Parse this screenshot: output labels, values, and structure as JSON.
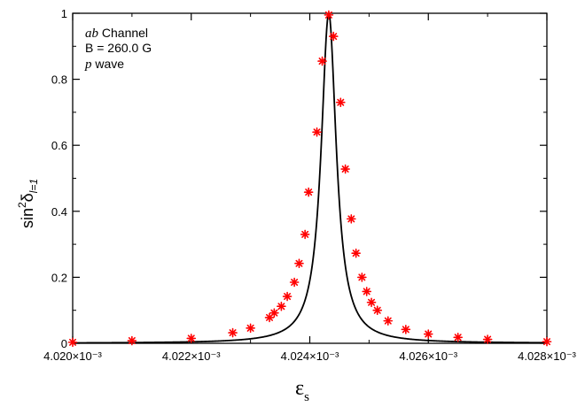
{
  "chart_data": {
    "type": "line",
    "title": "",
    "xlabel": {
      "main": "ε",
      "sub": "s"
    },
    "ylabel": {
      "prefix": "sin",
      "sup": "2",
      "delta": "δ",
      "sub": "l=1"
    },
    "xlim": [
      4.02,
      4.028
    ],
    "ylim": [
      0,
      1
    ],
    "x_ticks": [
      {
        "value": 4.02,
        "label": "4.020×10⁻³"
      },
      {
        "value": 4.022,
        "label": "4.022×10⁻³"
      },
      {
        "value": 4.024,
        "label": "4.024×10⁻³"
      },
      {
        "value": 4.026,
        "label": "4.026×10⁻³"
      },
      {
        "value": 4.028,
        "label": "4.028×10⁻³"
      }
    ],
    "y_ticks": [
      {
        "value": 0,
        "label": "0"
      },
      {
        "value": 0.2,
        "label": "0.2"
      },
      {
        "value": 0.4,
        "label": "0.4"
      },
      {
        "value": 0.6,
        "label": "0.6"
      },
      {
        "value": 0.8,
        "label": "0.8"
      },
      {
        "value": 1.0,
        "label": "1"
      }
    ],
    "x_unit_factor": "×10⁻³",
    "annotation": {
      "line1_italic": "ab",
      "line1_text": " Channel",
      "line2_text": "B = 260.0 G",
      "line3_italic": "p",
      "line3_text": " wave"
    },
    "curve": {
      "style": "solid",
      "color": "#000000",
      "resonance_center": 4.02432,
      "half_width": 0.000155,
      "x_range": [
        4.02,
        4.028
      ]
    },
    "series": [
      {
        "marker": "asterisk",
        "color": "#ff0000",
        "points": [
          [
            4.02,
            0.003
          ],
          [
            4.021,
            0.008
          ],
          [
            4.022,
            0.015
          ],
          [
            4.0227,
            0.032
          ],
          [
            4.023,
            0.046
          ],
          [
            4.02332,
            0.078
          ],
          [
            4.0234,
            0.092
          ],
          [
            4.02352,
            0.112
          ],
          [
            4.02362,
            0.142
          ],
          [
            4.02374,
            0.185
          ],
          [
            4.02382,
            0.242
          ],
          [
            4.02392,
            0.33
          ],
          [
            4.02398,
            0.458
          ],
          [
            4.02412,
            0.64
          ],
          [
            4.02421,
            0.855
          ],
          [
            4.02432,
            0.995
          ],
          [
            4.0244,
            0.93
          ],
          [
            4.02452,
            0.73
          ],
          [
            4.0246,
            0.528
          ],
          [
            4.0247,
            0.377
          ],
          [
            4.02478,
            0.273
          ],
          [
            4.02488,
            0.2
          ],
          [
            4.02496,
            0.157
          ],
          [
            4.02504,
            0.124
          ],
          [
            4.02514,
            0.1
          ],
          [
            4.02532,
            0.068
          ],
          [
            4.02562,
            0.042
          ],
          [
            4.026,
            0.028
          ],
          [
            4.0265,
            0.018
          ],
          [
            4.027,
            0.012
          ],
          [
            4.028,
            0.005
          ]
        ]
      }
    ],
    "grid": false,
    "legend": "none"
  }
}
